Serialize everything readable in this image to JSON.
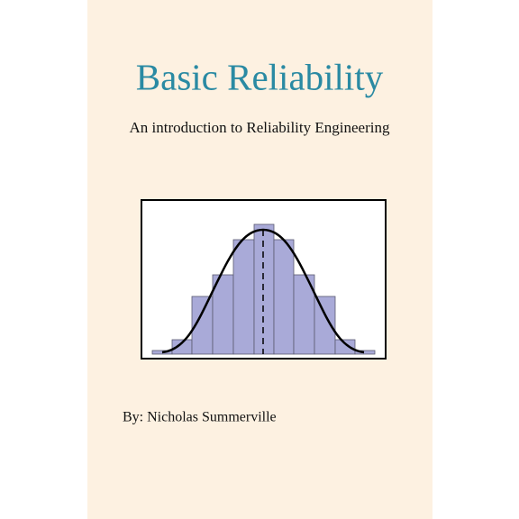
{
  "cover": {
    "title": "Basic Reliability",
    "subtitle": "An introduction to Reliability Engineering",
    "author": "By: Nicholas Summerville"
  }
}
